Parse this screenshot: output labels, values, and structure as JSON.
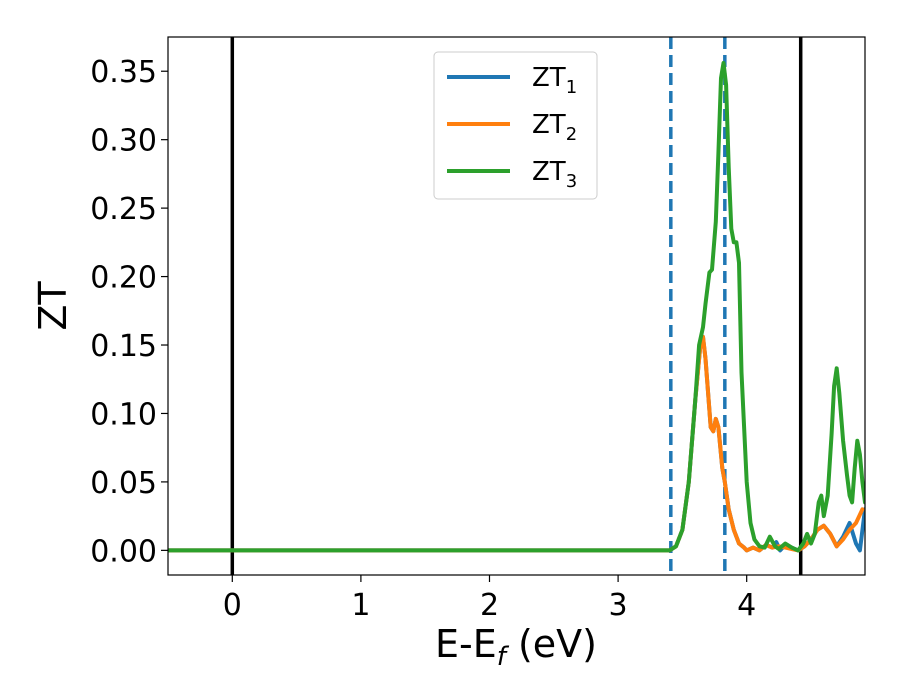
{
  "chart_data": {
    "type": "line",
    "xlabel": {
      "main": "E-E",
      "sub": "f",
      "tail": " (eV)"
    },
    "ylabel": "ZT",
    "xlim": [
      -0.5,
      4.92
    ],
    "ylim": [
      -0.018,
      0.375
    ],
    "xticks": [
      0,
      1,
      2,
      3,
      4
    ],
    "yticks": [
      0.0,
      0.05,
      0.1,
      0.15,
      0.2,
      0.25,
      0.3,
      0.35
    ],
    "ytick_labels": [
      "0.00",
      "0.05",
      "0.10",
      "0.15",
      "0.20",
      "0.25",
      "0.30",
      "0.35"
    ],
    "vlines": [
      {
        "x": 0.0,
        "color": "#000000",
        "style": "solid"
      },
      {
        "x": 4.42,
        "color": "#000000",
        "style": "solid"
      },
      {
        "x": 3.41,
        "color": "#1f77b4",
        "style": "dashed"
      },
      {
        "x": 3.83,
        "color": "#1f77b4",
        "style": "dashed"
      }
    ],
    "legend": {
      "position": "upper-center"
    },
    "series": [
      {
        "name": "ZT",
        "sub": "1",
        "color": "#1f77b4",
        "x": [
          -0.5,
          3.4,
          3.45,
          3.5,
          3.55,
          3.6,
          3.64,
          3.66,
          3.68,
          3.72,
          3.74,
          3.76,
          3.78,
          3.81,
          3.83,
          3.86,
          3.9,
          3.94,
          3.98,
          4.0,
          4.05,
          4.1,
          4.15,
          4.2,
          4.23,
          4.26,
          4.3,
          4.35,
          4.4,
          4.45,
          4.5,
          4.55,
          4.6,
          4.65,
          4.7,
          4.75,
          4.8,
          4.85,
          4.88,
          4.92
        ],
        "y": [
          0.0,
          0.0,
          0.003,
          0.015,
          0.05,
          0.11,
          0.15,
          0.156,
          0.14,
          0.09,
          0.087,
          0.096,
          0.09,
          0.06,
          0.05,
          0.03,
          0.015,
          0.005,
          0.002,
          0.0,
          0.002,
          0.0,
          0.004,
          0.002,
          0.006,
          0.0,
          0.004,
          0.002,
          0.0,
          0.003,
          0.008,
          0.015,
          0.018,
          0.012,
          0.003,
          0.01,
          0.02,
          0.005,
          0.0,
          0.03
        ]
      },
      {
        "name": "ZT",
        "sub": "2",
        "color": "#ff7f0e",
        "x": [
          -0.5,
          3.4,
          3.45,
          3.5,
          3.55,
          3.6,
          3.64,
          3.66,
          3.68,
          3.72,
          3.74,
          3.76,
          3.78,
          3.81,
          3.83,
          3.86,
          3.9,
          3.94,
          3.98,
          4.0,
          4.05,
          4.1,
          4.15,
          4.2,
          4.25,
          4.3,
          4.35,
          4.4,
          4.45,
          4.5,
          4.55,
          4.6,
          4.65,
          4.7,
          4.75,
          4.8,
          4.85,
          4.9
        ],
        "y": [
          0.0,
          0.0,
          0.003,
          0.015,
          0.05,
          0.11,
          0.15,
          0.156,
          0.14,
          0.09,
          0.087,
          0.096,
          0.09,
          0.06,
          0.05,
          0.03,
          0.015,
          0.005,
          0.002,
          0.0,
          0.002,
          0.0,
          0.004,
          0.002,
          0.003,
          0.002,
          0.001,
          0.0,
          0.003,
          0.008,
          0.015,
          0.018,
          0.012,
          0.003,
          0.008,
          0.015,
          0.02,
          0.03
        ]
      },
      {
        "name": "ZT",
        "sub": "3",
        "color": "#2ca02c",
        "x": [
          -0.5,
          3.4,
          3.45,
          3.5,
          3.55,
          3.6,
          3.63,
          3.66,
          3.68,
          3.71,
          3.73,
          3.76,
          3.78,
          3.8,
          3.82,
          3.84,
          3.86,
          3.88,
          3.9,
          3.92,
          3.94,
          3.96,
          4.0,
          4.03,
          4.06,
          4.1,
          4.14,
          4.18,
          4.22,
          4.25,
          4.3,
          4.35,
          4.4,
          4.44,
          4.47,
          4.5,
          4.53,
          4.56,
          4.58,
          4.6,
          4.63,
          4.66,
          4.68,
          4.7,
          4.72,
          4.75,
          4.78,
          4.8,
          4.82,
          4.84,
          4.86,
          4.88,
          4.9,
          4.92
        ],
        "y": [
          0.0,
          0.0,
          0.003,
          0.015,
          0.05,
          0.11,
          0.15,
          0.163,
          0.18,
          0.203,
          0.205,
          0.24,
          0.29,
          0.345,
          0.356,
          0.34,
          0.28,
          0.235,
          0.225,
          0.225,
          0.21,
          0.13,
          0.05,
          0.02,
          0.008,
          0.003,
          0.002,
          0.01,
          0.003,
          0.001,
          0.005,
          0.002,
          0.0,
          0.005,
          0.012,
          0.005,
          0.012,
          0.035,
          0.04,
          0.025,
          0.04,
          0.085,
          0.12,
          0.133,
          0.115,
          0.08,
          0.055,
          0.04,
          0.035,
          0.06,
          0.08,
          0.07,
          0.05,
          0.035
        ]
      }
    ]
  }
}
